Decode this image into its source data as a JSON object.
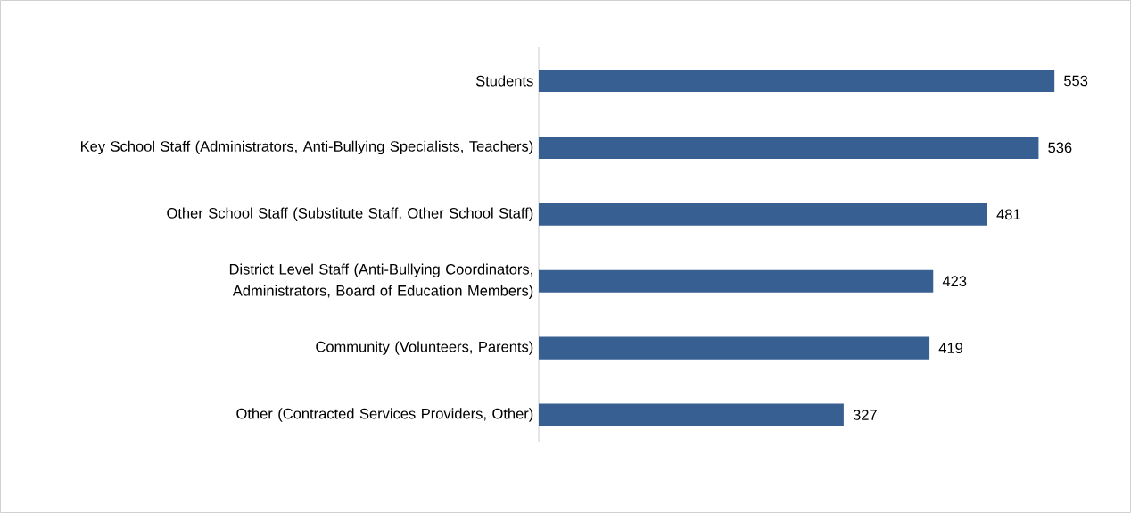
{
  "chart_data": {
    "type": "bar",
    "orientation": "horizontal",
    "categories": [
      "Students",
      "Key School Staff (Administrators, Anti-Bullying Specialists, Teachers)",
      "Other School Staff (Substitute Staff, Other School Staff)",
      "District Level Staff (Anti-Bullying Coordinators, Administrators, Board of Education Members)",
      "Community (Volunteers, Parents)",
      "Other (Contracted Services Providers, Other)"
    ],
    "values": [
      553,
      536,
      481,
      423,
      419,
      327
    ],
    "color": "#375f91",
    "data_labels": true
  }
}
